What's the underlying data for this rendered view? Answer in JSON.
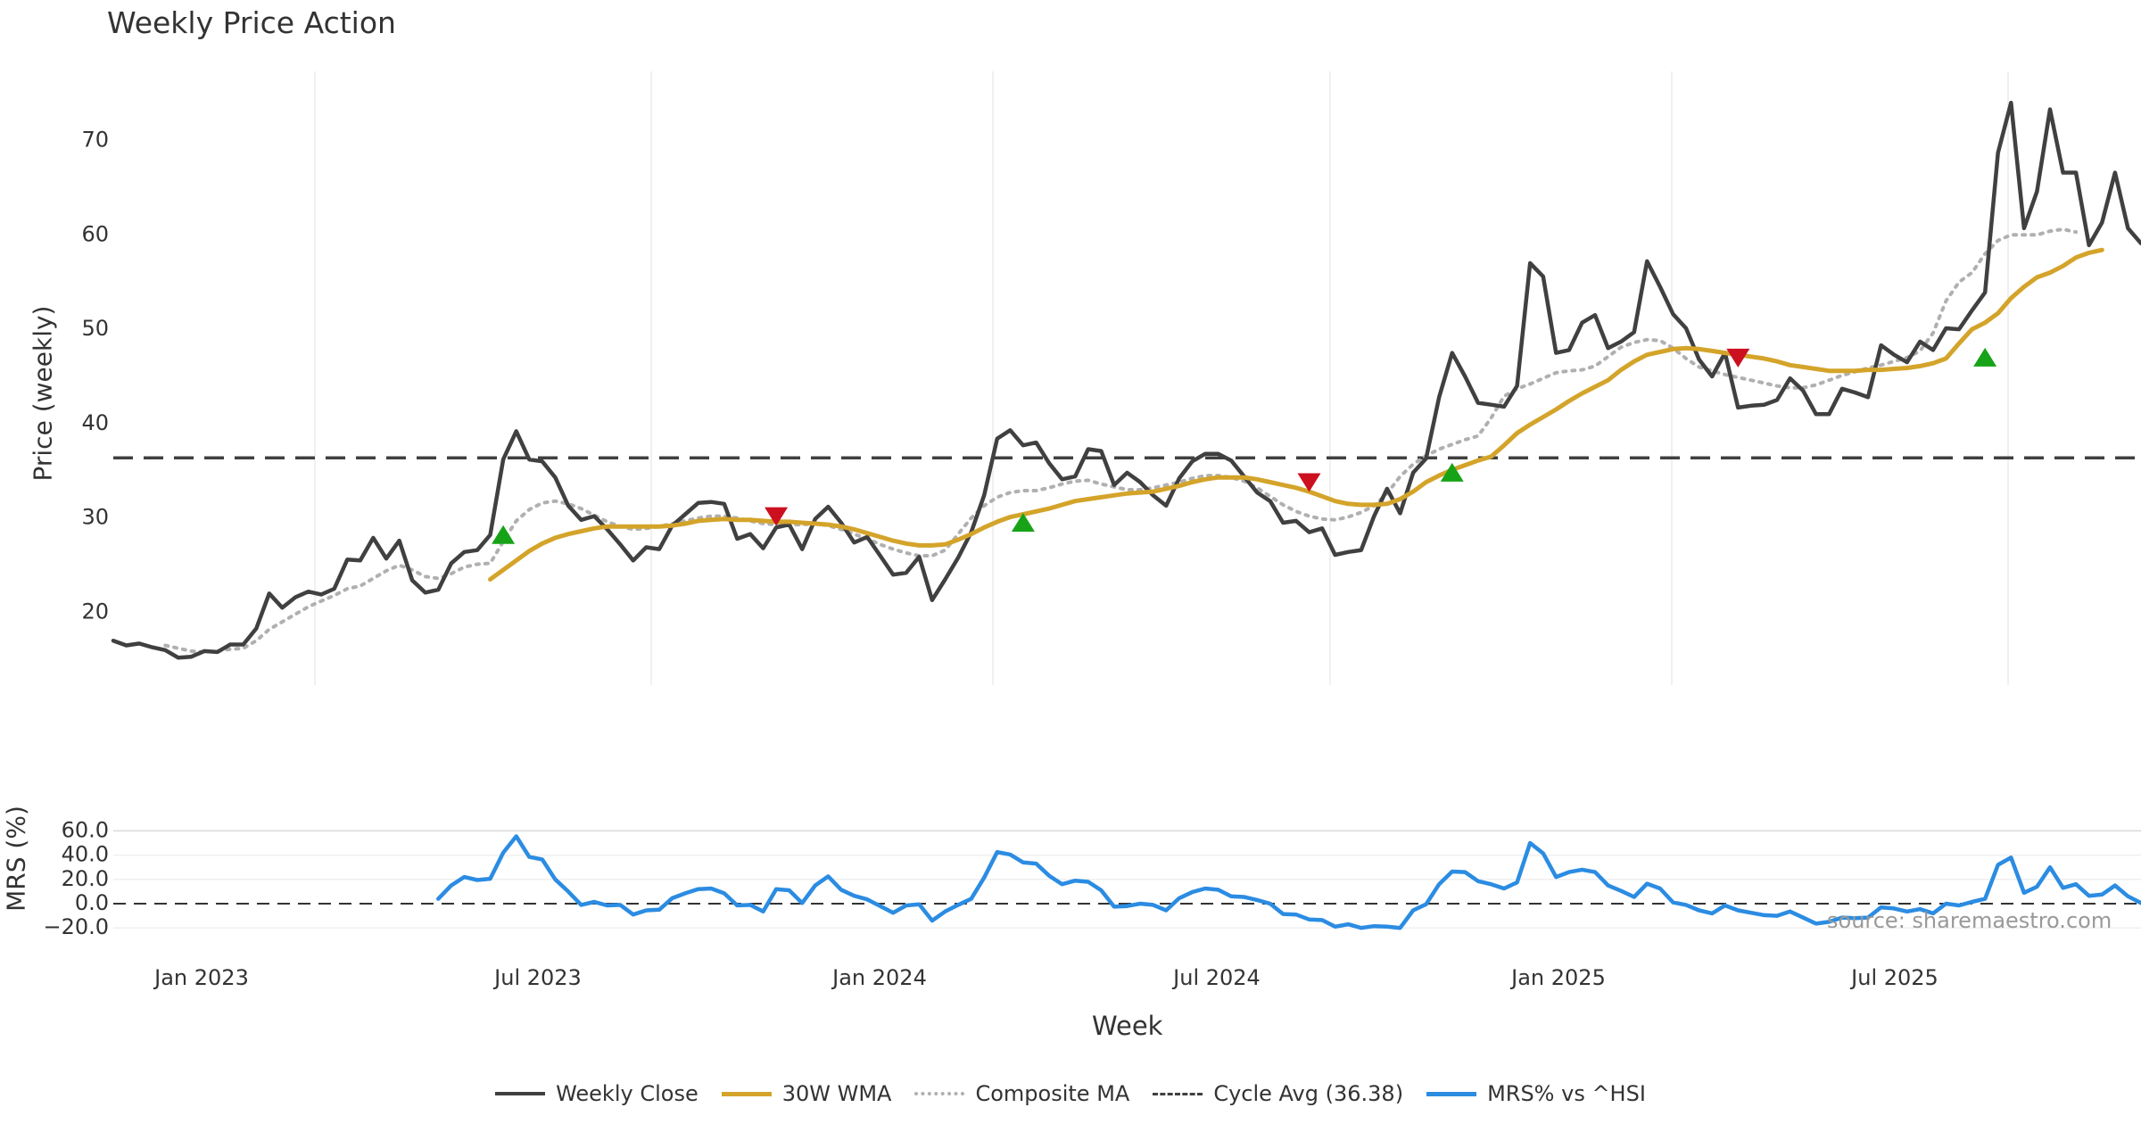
{
  "chart_data": [
    {
      "type": "line",
      "title": "Weekly Price Action",
      "xlabel": "",
      "ylabel": "Price (weekly)",
      "yticks": [
        20,
        30,
        40,
        50,
        60,
        70
      ],
      "ylim": [
        12.5,
        77.5
      ],
      "xticks": [
        "Jan 2023",
        "Jul 2023",
        "Jan 2024",
        "Jul 2024",
        "Jan 2025",
        "Jul 2025"
      ],
      "reference_line": {
        "name": "Cycle Avg (36.38)",
        "value": 36.38
      },
      "series": [
        {
          "name": "Weekly Close",
          "color": "#404040",
          "values": [
            17.0,
            16.5,
            16.7,
            16.3,
            16.0,
            15.2,
            15.3,
            15.9,
            15.8,
            16.6,
            16.6,
            18.3,
            22.0,
            20.5,
            21.6,
            22.2,
            21.9,
            22.5,
            25.6,
            25.5,
            27.9,
            25.7,
            27.6,
            23.4,
            22.1,
            22.4,
            25.2,
            26.4,
            26.6,
            28.2,
            36.2,
            39.2,
            36.2,
            36.0,
            34.3,
            31.3,
            29.8,
            30.2,
            28.8,
            27.2,
            25.5,
            26.9,
            26.7,
            29.2,
            30.4,
            31.6,
            31.7,
            31.5,
            27.8,
            28.3,
            26.8,
            29.0,
            29.3,
            26.7,
            29.9,
            31.2,
            29.5,
            27.4,
            28.0,
            26.0,
            24.0,
            24.2,
            25.9,
            21.3,
            23.5,
            25.8,
            28.5,
            32.4,
            38.4,
            39.3,
            37.7,
            38.0,
            35.8,
            34.1,
            34.4,
            37.3,
            37.1,
            33.5,
            34.8,
            33.8,
            32.4,
            31.3,
            34.2,
            36.0,
            36.8,
            36.8,
            36.1,
            34.4,
            32.7,
            31.8,
            29.5,
            29.7,
            28.5,
            28.9,
            26.1,
            26.4,
            26.6,
            30.2,
            33.1,
            30.5,
            34.8,
            36.3,
            42.8,
            47.5,
            45.0,
            42.2,
            42.0,
            41.8,
            44.0,
            57.0,
            55.6,
            47.5,
            47.8,
            50.7,
            51.5,
            48.0,
            48.7,
            49.7,
            57.2,
            54.5,
            51.6,
            50.1,
            46.8,
            45.0,
            47.5,
            41.7,
            41.9,
            42.0,
            42.5,
            44.8,
            43.5,
            41.0,
            41.0,
            43.7,
            43.3,
            42.8,
            48.3,
            47.3,
            46.5,
            48.7,
            47.8,
            50.1,
            50.0,
            52.0,
            53.9,
            68.7,
            74.0,
            60.7,
            64.6,
            73.3,
            66.6,
            66.6,
            58.9,
            61.3,
            66.6,
            60.7,
            59.1
          ]
        },
        {
          "name": "30W WMA",
          "color": "#d4a42a",
          "start_index": 29,
          "values": [
            23.5,
            24.5,
            25.5,
            26.5,
            27.3,
            27.9,
            28.3,
            28.6,
            28.9,
            29.1,
            29.1,
            29.1,
            29.1,
            29.1,
            29.2,
            29.4,
            29.7,
            29.8,
            29.9,
            29.8,
            29.8,
            29.7,
            29.6,
            29.6,
            29.5,
            29.4,
            29.3,
            29.1,
            28.8,
            28.4,
            28.0,
            27.6,
            27.3,
            27.1,
            27.1,
            27.2,
            27.7,
            28.3,
            29.0,
            29.6,
            30.1,
            30.4,
            30.7,
            31.0,
            31.4,
            31.8,
            32.0,
            32.2,
            32.4,
            32.6,
            32.7,
            32.8,
            33.1,
            33.4,
            33.8,
            34.1,
            34.3,
            34.3,
            34.3,
            34.1,
            33.8,
            33.5,
            33.2,
            32.8,
            32.3,
            31.8,
            31.5,
            31.4,
            31.4,
            31.5,
            32.0,
            32.8,
            33.8,
            34.5,
            35.1,
            35.6,
            36.1,
            36.5,
            37.7,
            39.0,
            39.9,
            40.7,
            41.5,
            42.4,
            43.2,
            43.9,
            44.6,
            45.7,
            46.6,
            47.3,
            47.6,
            47.9,
            48.0,
            47.9,
            47.7,
            47.5,
            47.3,
            47.1,
            46.9,
            46.6,
            46.2,
            46.0,
            45.8,
            45.6,
            45.6,
            45.6,
            45.7,
            45.7,
            45.8,
            45.9,
            46.1,
            46.4,
            46.9,
            48.5,
            50.0,
            50.7,
            51.7,
            53.3,
            54.5,
            55.5,
            56.0,
            56.7,
            57.6,
            58.1,
            58.4
          ]
        },
        {
          "name": "Composite MA",
          "color": "#b0b0b0",
          "start_index": 4,
          "values": [
            16.5,
            16.2,
            15.9,
            15.8,
            15.9,
            16.1,
            16.2,
            17.0,
            18.2,
            19.0,
            19.8,
            20.6,
            21.2,
            21.8,
            22.5,
            22.8,
            23.6,
            24.4,
            25.0,
            24.5,
            23.8,
            23.6,
            24.1,
            24.8,
            25.1,
            25.2,
            27.5,
            29.7,
            30.9,
            31.6,
            31.8,
            31.5,
            31.0,
            30.3,
            29.6,
            29.1,
            28.8,
            28.9,
            29.1,
            29.4,
            29.7,
            30.0,
            30.2,
            30.2,
            30.0,
            29.7,
            29.4,
            29.3,
            29.3,
            29.3,
            29.4,
            29.2,
            28.8,
            28.3,
            27.8,
            27.2,
            26.7,
            26.3,
            26.0,
            26.0,
            26.6,
            28.3,
            30.0,
            31.3,
            32.2,
            32.7,
            32.9,
            32.9,
            33.2,
            33.6,
            33.9,
            34.0,
            33.6,
            33.3,
            33.0,
            33.0,
            33.2,
            33.5,
            33.8,
            34.2,
            34.5,
            34.5,
            34.3,
            33.9,
            33.2,
            32.3,
            31.4,
            30.7,
            30.2,
            29.9,
            29.8,
            30.1,
            30.6,
            31.3,
            32.6,
            34.4,
            35.7,
            36.6,
            37.3,
            37.8,
            38.3,
            38.7,
            40.6,
            42.9,
            43.7,
            44.2,
            44.8,
            45.4,
            45.6,
            45.7,
            46.1,
            47.1,
            48.1,
            48.6,
            48.9,
            48.8,
            48.0,
            46.9,
            46.0,
            45.6,
            45.2,
            44.9,
            44.6,
            44.3,
            44.0,
            43.8,
            43.8,
            44.1,
            44.6,
            45.1,
            45.5,
            45.9,
            46.2,
            46.6,
            47.0,
            47.7,
            49.6,
            53.0,
            55.0,
            56.0,
            58.0,
            59.4,
            60.0,
            60.0,
            60.0,
            60.4,
            60.6,
            60.3
          ]
        }
      ],
      "signals": [
        {
          "type": "buy",
          "index": 30,
          "value": 28.2
        },
        {
          "type": "sell",
          "index": 51,
          "value": 30.2
        },
        {
          "type": "buy",
          "index": 70,
          "value": 29.5
        },
        {
          "type": "sell",
          "index": 92,
          "value": 33.8
        },
        {
          "type": "buy",
          "index": 103,
          "value": 34.8
        },
        {
          "type": "sell",
          "index": 125,
          "value": 47.0
        },
        {
          "type": "buy",
          "index": 144,
          "value": 47.0
        }
      ]
    },
    {
      "type": "line",
      "title": "",
      "xlabel": "Week",
      "ylabel": "MRS (%)",
      "yticks": [
        "60.0",
        "40.0",
        "20.0",
        "0.0",
        "−20.0"
      ],
      "ylim": [
        -20,
        60
      ],
      "reference_value": 0,
      "series": [
        {
          "name": "MRS% vs ^HSI",
          "color": "#2b8ce2",
          "start_index": 25,
          "values": [
            4.0,
            15.0,
            22.0,
            19.5,
            20.5,
            42.0,
            55.5,
            38.5,
            36.5,
            20.0,
            10.0,
            -1.0,
            1.5,
            -1.5,
            -1.0,
            -9.0,
            -5.5,
            -5.0,
            4.5,
            8.5,
            12.0,
            12.5,
            8.5,
            -1.5,
            -1.0,
            -6.5,
            12.0,
            11.0,
            0.5,
            15.0,
            22.5,
            11.5,
            6.5,
            3.5,
            -2.0,
            -7.5,
            -1.5,
            -0.5,
            -14.0,
            -6.5,
            -1.0,
            4.0,
            21.5,
            42.5,
            40.5,
            34.0,
            33.0,
            23.0,
            16.0,
            19.0,
            18.0,
            11.0,
            -2.5,
            -2.0,
            0.0,
            -1.0,
            -5.5,
            4.5,
            9.5,
            12.5,
            11.5,
            6.0,
            5.5,
            3.0,
            0.0,
            -8.5,
            -9.0,
            -13.0,
            -13.5,
            -19.0,
            -17.0,
            -20.0,
            -18.5,
            -19.0,
            -20.0,
            -5.5,
            -0.5,
            16.0,
            26.5,
            26.0,
            18.5,
            16.0,
            12.5,
            17.5,
            50.0,
            41.5,
            22.0,
            26.0,
            28.0,
            26.0,
            15.0,
            10.5,
            5.5,
            16.5,
            12.5,
            1.0,
            -1.0,
            -5.5,
            -8.0,
            -1.5,
            -5.5,
            -7.5,
            -9.5,
            -10.0,
            -6.5,
            -11.5,
            -16.5,
            -15.0,
            -11.5,
            -12.0,
            -11.5,
            -3.0,
            -4.0,
            -6.5,
            -4.5,
            -8.0,
            0.0,
            -1.5,
            1.5,
            4.0,
            32.0,
            38.0,
            9.0,
            14.0,
            30.0,
            13.0,
            16.0,
            6.5,
            7.5,
            15.0,
            6.0,
            0.5
          ]
        }
      ]
    }
  ],
  "legend": [
    {
      "label": "Weekly Close",
      "style": "solid",
      "color": "#404040"
    },
    {
      "label": "30W WMA",
      "style": "solid",
      "color": "#d4a42a"
    },
    {
      "label": "Composite MA",
      "style": "dotted",
      "color": "#b0b0b0"
    },
    {
      "label": "Cycle Avg (36.38)",
      "style": "dashed",
      "color": "#404040"
    },
    {
      "label": "MRS% vs ^HSI",
      "style": "solid",
      "color": "#2b8ce2"
    }
  ],
  "source_text": "source: sharemaestro.com",
  "xaxis_label": "Week"
}
